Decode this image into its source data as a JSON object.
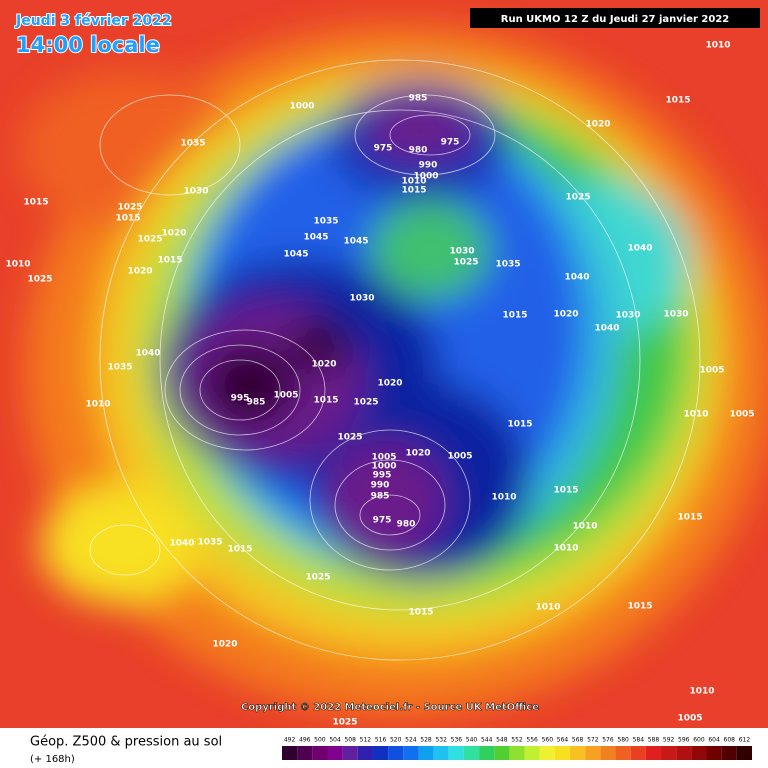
{
  "header": {
    "date": "Jeudi 3 février 2022",
    "time": "14:00 locale",
    "run": "Run UKMO 12 Z du Jeudi 27 janvier 2022"
  },
  "copyright": "Copyright © 2022 Meteociel.fr - Source UK MetOffice",
  "legend": {
    "title": "Géop. Z500 & pression au sol",
    "lead": "(+ 168h)",
    "ticks": [
      492,
      496,
      500,
      504,
      508,
      512,
      516,
      520,
      524,
      528,
      532,
      536,
      540,
      544,
      548,
      552,
      556,
      560,
      564,
      568,
      572,
      576,
      580,
      584,
      588,
      592,
      596,
      600,
      604,
      608,
      612
    ],
    "colors": [
      "#300030",
      "#500050",
      "#700070",
      "#800090",
      "#6020a0",
      "#3020b0",
      "#1030c0",
      "#1050e0",
      "#1070f0",
      "#10a0f0",
      "#20c0f0",
      "#30e0e0",
      "#30e0a0",
      "#30d060",
      "#50d030",
      "#90e030",
      "#c0f030",
      "#f0f030",
      "#f8e020",
      "#f8c020",
      "#f8a020",
      "#f08020",
      "#f06020",
      "#e84020",
      "#e02020",
      "#c81818",
      "#b01010",
      "#900808",
      "#700000",
      "#500000",
      "#300000"
    ]
  },
  "isobar_labels": [
    1010,
    985,
    1015,
    1000,
    1020,
    1035,
    975,
    980,
    975,
    990,
    1000,
    1010,
    1015,
    1025,
    1030,
    1015,
    1025,
    1015,
    1025,
    1020,
    1045,
    1045,
    1035,
    1045,
    1030,
    1025,
    1035,
    1040,
    1015,
    1010,
    1020,
    1025,
    1030,
    1030,
    1040,
    1040,
    1015,
    1020,
    1040,
    1035,
    1020,
    1020,
    1010,
    995,
    985,
    1005,
    1015,
    1025,
    1020,
    1025,
    1005,
    1000,
    995,
    990,
    985,
    975,
    980,
    1005,
    1015,
    1010,
    1015,
    1010,
    1010,
    1015,
    1005,
    1005,
    1010,
    1030,
    1035,
    1040,
    1015,
    1025,
    1015,
    1020,
    1010,
    1015,
    1005,
    1010,
    1025
  ]
}
